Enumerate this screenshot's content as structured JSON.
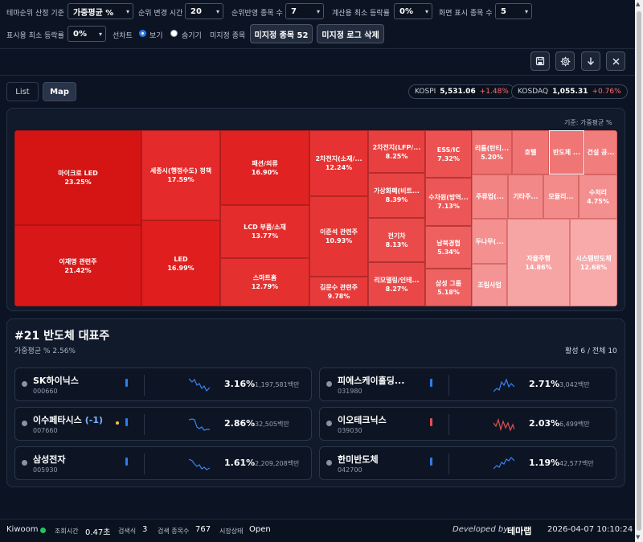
{
  "toolbar": {
    "rank_basis_label": "테마순위 산정 기준",
    "rank_basis_value": "가중평균 %",
    "rank_change_label": "순위 변경 시간",
    "rank_change_value": "20",
    "rank_stocks_label": "순위반영 종목 수",
    "rank_stocks_value": "7",
    "min_rate_label": "계산용 최소 등락률",
    "min_rate_value": "0%",
    "display_count_label": "화면 표시 종목 수",
    "display_count_value": "5",
    "display_min_rate_label": "표시용 최소 등락률",
    "display_min_rate_value": "0%",
    "line_chart_label": "선차트",
    "show_label": "보기",
    "hide_label": "숨기기",
    "unassigned_label": "미지정 종목",
    "unassigned_button": "미지정 종목 52",
    "delete_log_button": "미지정 로그 삭제"
  },
  "tabs": [
    "List",
    "Map"
  ],
  "indices": {
    "kospi_name": "KOSPI",
    "kospi_value": "5,531.06",
    "kospi_change": "+1.48%",
    "kosdaq_name": "KOSDAQ",
    "kosdaq_value": "1,055.31",
    "kosdaq_change": "+0.76%"
  },
  "map_basis": "기준: 가중평균 %",
  "treemap": [
    {
      "name": "마이크로 LED",
      "value": "23.25%"
    },
    {
      "name": "이재명 관련주",
      "value": "21.42%"
    },
    {
      "name": "세종시(행정수도) 정책",
      "value": "17.59%"
    },
    {
      "name": "LED",
      "value": "16.99%"
    },
    {
      "name": "패션/의류",
      "value": "16.90%"
    },
    {
      "name": "LCD 부품/소재",
      "value": "13.77%"
    },
    {
      "name": "스마트홈",
      "value": "12.79%"
    },
    {
      "name": "2차전지(소재/...",
      "value": "12.24%"
    },
    {
      "name": "이준석 관련주",
      "value": "10.93%"
    },
    {
      "name": "김문수 관련주",
      "value": "9.78%"
    },
    {
      "name": "2차전지(LFP/...",
      "value": "8.25%"
    },
    {
      "name": "가상화폐(비트...",
      "value": "8.39%"
    },
    {
      "name": "전기차",
      "value": "8.13%"
    },
    {
      "name": "리모델링/인테...",
      "value": "8.27%"
    },
    {
      "name": "ESS/IC",
      "value": "7.32%"
    },
    {
      "name": "수자원(방역...",
      "value": "7.13%"
    },
    {
      "name": "남북경협",
      "value": "5.34%"
    },
    {
      "name": "삼성 그룹",
      "value": "5.18%"
    },
    {
      "name": "리튬(탄티...",
      "value": "5.20%"
    },
    {
      "name": "호텔",
      "value": ""
    },
    {
      "name": "반도체 ...",
      "value": ""
    },
    {
      "name": "건설 공...",
      "value": ""
    },
    {
      "name": "주류업(...",
      "value": ""
    },
    {
      "name": "기타주...",
      "value": ""
    },
    {
      "name": "모듈리...",
      "value": ""
    },
    {
      "name": "수처리",
      "value": "4.75%"
    },
    {
      "name": "두나무(...",
      "value": ""
    },
    {
      "name": "조림사업",
      "value": ""
    },
    {
      "name": "자율주행",
      "value": "14.86%"
    },
    {
      "name": "시스템반도체",
      "value": "12.68%"
    }
  ],
  "detail": {
    "title": "#21 반도체 대표주",
    "subtitle": "가중평균 % 2.56%",
    "active": "활성 6 / 전체 10",
    "stocks": [
      {
        "name": "SK하이닉스",
        "suffix": "",
        "code": "000660",
        "pct": "3.16%",
        "amt": "1,197,581백만"
      },
      {
        "name": "피에스케이홀딩...",
        "suffix": "",
        "code": "031980",
        "pct": "2.71%",
        "amt": "3,042백만"
      },
      {
        "name": "이수페타시스",
        "suffix": "(-1)",
        "code": "007660",
        "pct": "2.86%",
        "amt": "32,505백만"
      },
      {
        "name": "이오테크닉스",
        "suffix": "",
        "code": "039030",
        "pct": "2.03%",
        "amt": "6,499백만"
      },
      {
        "name": "삼성전자",
        "suffix": "",
        "code": "005930",
        "pct": "1.61%",
        "amt": "2,209,208백만"
      },
      {
        "name": "한미반도체",
        "suffix": "",
        "code": "042700",
        "pct": "1.19%",
        "amt": "42,577백만"
      }
    ]
  },
  "status": {
    "broker": "Kiwoom",
    "query_label": "조회시간",
    "query_value": "0.47초",
    "search_label": "검색식",
    "search_value": "3",
    "search_count_label": "검색 종목수",
    "search_count_value": "767",
    "market_label": "시장상태",
    "market_value": "Open",
    "developed_by": "Developed by",
    "brand": "테마랩",
    "datetime": "2026-04-07 10:10:24"
  }
}
